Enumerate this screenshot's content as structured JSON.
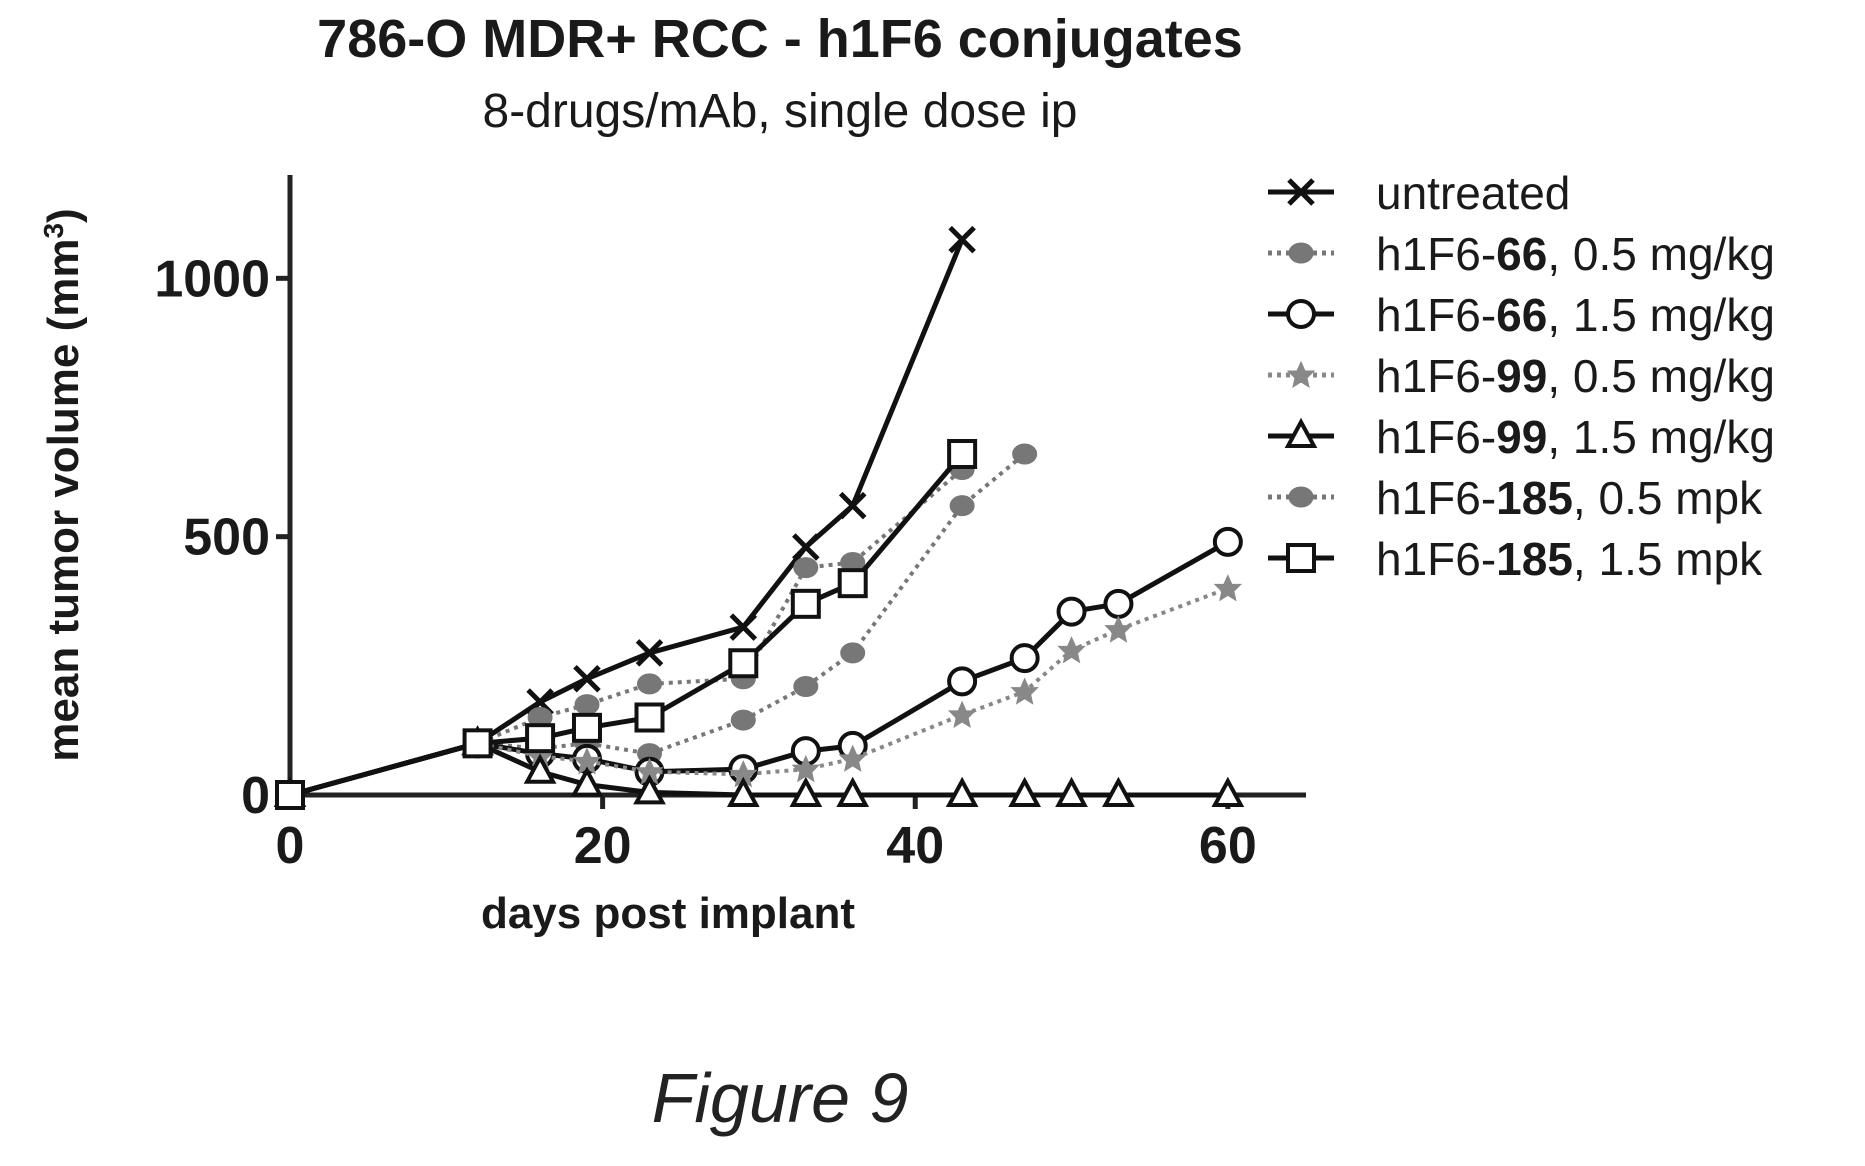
{
  "figure_caption": "Figure 9",
  "chart_data": {
    "type": "line",
    "title": "786-O MDR+ RCC - h1F6 conjugates",
    "subtitle": "8-drugs/mAb, single dose ip",
    "xlabel": "days post implant",
    "ylabel": "mean tumor volume (mm",
    "ylabel_superscript": "3",
    "ylabel_close": ")",
    "xlim": [
      0,
      65
    ],
    "ylim": [
      0,
      1200
    ],
    "xticks": [
      0,
      20,
      40,
      60
    ],
    "yticks": [
      0,
      500,
      1000
    ],
    "grid": false,
    "legend_position": "right",
    "series": [
      {
        "name": "untreated",
        "name_bold": "",
        "name_suffix": "",
        "marker": "x",
        "line_style": "solid",
        "color": "#111111",
        "x": [
          0,
          12,
          16,
          19,
          23,
          29,
          33,
          36,
          43
        ],
        "y": [
          0,
          100,
          180,
          225,
          275,
          325,
          480,
          560,
          1075
        ]
      },
      {
        "name": "h1F6-",
        "name_bold": "66",
        "name_suffix": ", 0.5 mg/kg",
        "marker": "dot",
        "line_style": "dotted",
        "color": "#777777",
        "x": [
          0,
          12,
          16,
          19,
          23,
          29,
          33,
          36,
          43,
          47
        ],
        "y": [
          0,
          100,
          90,
          100,
          80,
          145,
          210,
          275,
          560,
          660
        ]
      },
      {
        "name": "h1F6-",
        "name_bold": "66",
        "name_suffix": ", 1.5 mg/kg",
        "marker": "circle",
        "line_style": "solid",
        "color": "#111111",
        "x": [
          0,
          12,
          16,
          19,
          23,
          29,
          33,
          36,
          43,
          47,
          50,
          53,
          60
        ],
        "y": [
          0,
          100,
          80,
          70,
          45,
          50,
          85,
          95,
          220,
          265,
          355,
          370,
          490
        ]
      },
      {
        "name": "h1F6-",
        "name_bold": "99",
        "name_suffix": ", 0.5 mg/kg",
        "marker": "star",
        "line_style": "dotted",
        "color": "#888888",
        "x": [
          0,
          12,
          16,
          19,
          23,
          29,
          33,
          36,
          43,
          47,
          50,
          53,
          60
        ],
        "y": [
          0,
          100,
          75,
          65,
          45,
          40,
          50,
          70,
          155,
          200,
          280,
          320,
          400
        ]
      },
      {
        "name": "h1F6-",
        "name_bold": "99",
        "name_suffix": ", 1.5 mg/kg",
        "marker": "triangle",
        "line_style": "solid",
        "color": "#111111",
        "x": [
          0,
          12,
          16,
          19,
          23,
          29,
          33,
          36,
          43,
          47,
          50,
          53,
          60
        ],
        "y": [
          0,
          100,
          45,
          20,
          5,
          0,
          0,
          0,
          0,
          0,
          0,
          0,
          0
        ]
      },
      {
        "name": "h1F6-",
        "name_bold": "185",
        "name_suffix": ", 0.5 mpk",
        "marker": "dot",
        "line_style": "dotted",
        "color": "#777777",
        "x": [
          0,
          12,
          16,
          19,
          23,
          29,
          33,
          36,
          43
        ],
        "y": [
          0,
          100,
          150,
          175,
          215,
          225,
          440,
          450,
          630
        ]
      },
      {
        "name": "h1F6-",
        "name_bold": "185",
        "name_suffix": ", 1.5 mpk",
        "marker": "square",
        "line_style": "solid",
        "color": "#111111",
        "x": [
          0,
          12,
          16,
          19,
          23,
          29,
          33,
          36,
          43
        ],
        "y": [
          0,
          100,
          110,
          130,
          150,
          255,
          370,
          410,
          660
        ]
      }
    ]
  }
}
